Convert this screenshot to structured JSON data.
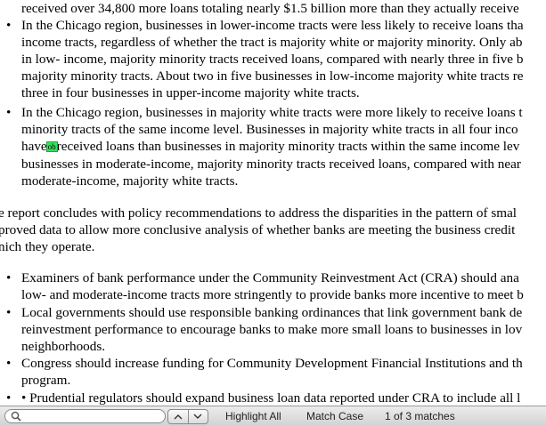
{
  "document": {
    "lines": [
      "received over 34,800 more loans totaling nearly $1.5 billion more than they actually receive",
      "In the Chicago region, businesses in lower-income tracts were less likely to receive loans tha",
      "income tracts, regardless of whether the tract is majority white or majority minority. Only ab",
      "in low- income, majority minority tracts received loans, compared with nearly three in five b",
      "majority minority tracts. About two in five businesses in low-income majority white tracts re",
      "three in four businesses in upper-income majority white tracts.",
      "In the Chicago region, businesses in majority white tracts were more likely to receive loans t",
      "minority tracts of the same income level. Businesses in majority white tracts in all four inco",
      "have",
      "received loans than businesses in majority minority tracts within the same income lev",
      "businesses in moderate-income, majority minority tracts received loans, compared with near",
      "moderate-income, majority white tracts.",
      "e report concludes with policy recommendations to address the disparities in the pattern of smal",
      "proved data to allow more conclusive analysis of whether banks are meeting the business credit",
      "nich they operate.",
      "Examiners of bank performance under the Community Reinvestment Act (CRA) should ana",
      "low- and moderate-income tracts more stringently to provide banks more incentive to meet b",
      "Local governments should use responsible banking ordinances that link government bank de",
      "reinvestment performance to encourage banks to make more small loans to businesses in lov",
      "neighborhoods.",
      "Congress should increase funding for Community Development Financial Institutions and th",
      "program.",
      "• Prudential regulators should expand business loan data reported under CRA to include all l"
    ],
    "highlight_text": "ob",
    "bullet_char": "•"
  },
  "findbar": {
    "search_value": "",
    "highlight_all_label": "Highlight All",
    "match_case_label": "Match Case",
    "match_status": "1 of 3 matches"
  }
}
